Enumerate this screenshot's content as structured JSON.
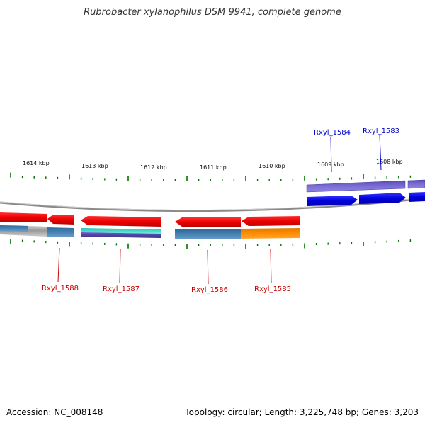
{
  "title": "Rubrobacter xylanophilus DSM 9941, complete genome",
  "footer": {
    "accession": "Accession: NC_008148",
    "summary": "Topology: circular; Length: 3,225,748 bp; Genes: 3,203"
  },
  "ruler": {
    "labels": [
      "1614 kbp",
      "1613 kbp",
      "1612 kbp",
      "1611 kbp",
      "1610 kbp",
      "1609 kbp",
      "1608 kbp"
    ]
  },
  "genes": [
    {
      "name": "Rxyl_1584",
      "strand": "forward",
      "color": "#0000cc"
    },
    {
      "name": "Rxyl_1583",
      "strand": "forward",
      "color": "#0000cc"
    },
    {
      "name": "Rxyl_1588",
      "strand": "reverse",
      "color": "#cc0000"
    },
    {
      "name": "Rxyl_1587",
      "strand": "reverse",
      "color": "#cc0000"
    },
    {
      "name": "Rxyl_1586",
      "strand": "reverse",
      "color": "#cc0000"
    },
    {
      "name": "Rxyl_1585",
      "strand": "reverse",
      "color": "#cc0000"
    }
  ],
  "colors": {
    "forward_cds": "#0000ee",
    "forward_cog": "#6a5acd",
    "reverse_cds": "#ee0000",
    "cog_blue": "#4682b4",
    "cog_orange": "#ff8c00",
    "cog_cyan": "#40e0d0",
    "cog_dark": "#483d8b",
    "backbone": "#808080",
    "tick": "#007000"
  }
}
